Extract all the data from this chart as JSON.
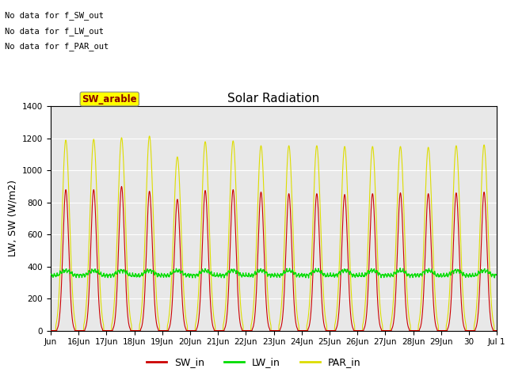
{
  "title": "Solar Radiation",
  "ylabel": "LW, SW (W/m2)",
  "ylim": [
    0,
    1400
  ],
  "yticks": [
    0,
    200,
    400,
    600,
    800,
    1000,
    1200,
    1400
  ],
  "colors": {
    "sw": "#cc0000",
    "lw": "#00dd00",
    "par": "#dddd00",
    "background": "#e8e8e8"
  },
  "annotations": [
    "No data for f_SW_out",
    "No data for f_LW_out",
    "No data for f_PAR_out"
  ],
  "legend_label": "SW_arable",
  "legend_entries": [
    "SW_in",
    "LW_in",
    "PAR_in"
  ],
  "xtick_labels": [
    "Jun",
    "16Jun",
    "17Jun",
    "18Jun",
    "19Jun",
    "20Jun",
    "21Jun",
    "22Jun",
    "23Jun",
    "24Jun",
    "25Jun",
    "26Jun",
    "27Jun",
    "28Jun",
    "29Jun",
    "30",
    "Jul 1"
  ],
  "sw_peak_vals": [
    880,
    880,
    900,
    870,
    820,
    875,
    880,
    865,
    855,
    855,
    850,
    855,
    860,
    855,
    860,
    865
  ],
  "par_peaks": [
    1190,
    1195,
    1205,
    1215,
    1085,
    1180,
    1185,
    1155,
    1155,
    1155,
    1150,
    1150,
    1150,
    1145,
    1155,
    1160
  ],
  "lw_base": 345,
  "n_days": 16,
  "font_size": 9,
  "title_fontsize": 11
}
